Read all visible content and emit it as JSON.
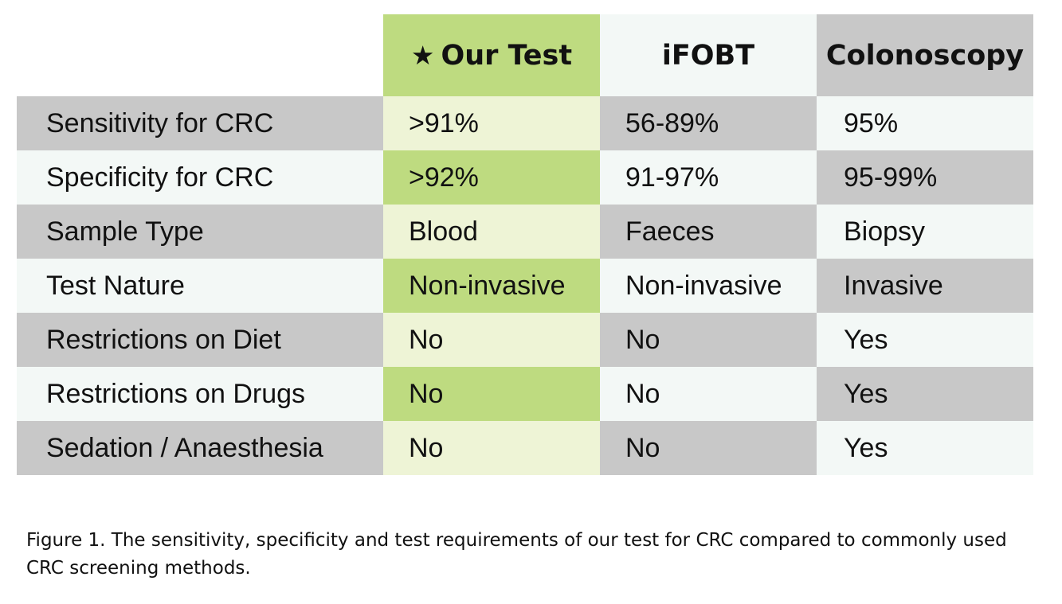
{
  "chart_data": {
    "type": "table",
    "columns": [
      "",
      "Our Test",
      "iFOBT",
      "Colonoscopy"
    ],
    "header_icon": "star-icon",
    "rows": [
      {
        "label": "Sensitivity for CRC",
        "values": [
          ">91%",
          "56-89%",
          "95%"
        ]
      },
      {
        "label": "Specificity for CRC",
        "values": [
          ">92%",
          "91-97%",
          "95-99%"
        ]
      },
      {
        "label": "Sample Type",
        "values": [
          "Blood",
          "Faeces",
          "Biopsy"
        ]
      },
      {
        "label": "Test Nature",
        "values": [
          "Non-invasive",
          "Non-invasive",
          "Invasive"
        ]
      },
      {
        "label": "Restrictions on Diet",
        "values": [
          "No",
          "No",
          "Yes"
        ]
      },
      {
        "label": "Restrictions on Drugs",
        "values": [
          "No",
          "No",
          "Yes"
        ]
      },
      {
        "label": "Sedation / Anaesthesia",
        "values": [
          "No",
          "No",
          "Yes"
        ]
      }
    ],
    "colors": {
      "highlight_green": "#bedb80",
      "pale_green": "#eef4d6",
      "gray": "#c8c8c8",
      "off_white": "#f3f8f6"
    }
  },
  "caption": "Figure 1. The sensitivity, specificity and test requirements of our test for CRC compared to commonly used CRC screening methods."
}
